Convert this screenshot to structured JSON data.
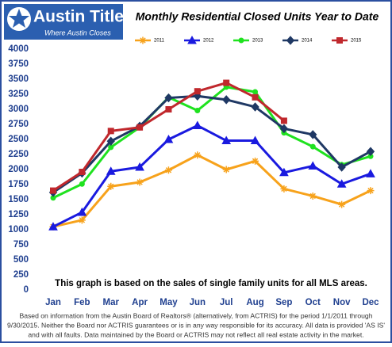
{
  "logo": {
    "name": "Austin Title",
    "tagline": "Where Austin Closes"
  },
  "chart_data": {
    "type": "line",
    "title": "Monthly Residential Closed Units Year to Date",
    "note": "This graph is based on the sales of single family units for all MLS areas.",
    "categories": [
      "Jan",
      "Feb",
      "Mar",
      "Apr",
      "May",
      "Jun",
      "Jul",
      "Aug",
      "Sep",
      "Oct",
      "Nov",
      "Dec"
    ],
    "ylim": [
      0,
      4000
    ],
    "yticks": [
      0,
      250,
      500,
      750,
      1000,
      1250,
      1500,
      1750,
      2000,
      2250,
      2500,
      2750,
      3000,
      3250,
      3500,
      3750,
      4000
    ],
    "legend": "top",
    "series": [
      {
        "name": "2011",
        "color": "#f7a21b",
        "marker": "star",
        "values": [
          1050,
          1160,
          1720,
          1790,
          1990,
          2240,
          2000,
          2140,
          1680,
          1560,
          1420,
          1650
        ]
      },
      {
        "name": "2012",
        "color": "#1a1adf",
        "marker": "triangle",
        "values": [
          1050,
          1290,
          1970,
          2040,
          2500,
          2730,
          2480,
          2480,
          1950,
          2060,
          1760,
          1930
        ]
      },
      {
        "name": "2013",
        "color": "#1fe21f",
        "marker": "circle",
        "values": [
          1530,
          1760,
          2370,
          2700,
          3200,
          2980,
          3370,
          3290,
          2610,
          2380,
          2080,
          2220
        ]
      },
      {
        "name": "2014",
        "color": "#1f3864",
        "marker": "diamond",
        "values": [
          1620,
          1940,
          2470,
          2720,
          3190,
          3220,
          3160,
          3040,
          2680,
          2580,
          2040,
          2300
        ]
      },
      {
        "name": "2015",
        "color": "#c0282d",
        "marker": "square",
        "values": [
          1650,
          1960,
          2640,
          2700,
          3000,
          3300,
          3440,
          3200,
          2810,
          null,
          null,
          null
        ]
      }
    ]
  },
  "footnote": [
    "Based on information from the Austin Board of Realtors® (alternatively, from ACTRIS) for the period 1/1/2011 through",
    "9/30/2015.  Neither the Board nor ACTRIS guarantees or is in any way responsible for its accuracy.  All data is provided 'AS IS'",
    "and with all faults.  Data maintained by the Board or ACTRIS may not reflect all real estate activity in the market."
  ]
}
